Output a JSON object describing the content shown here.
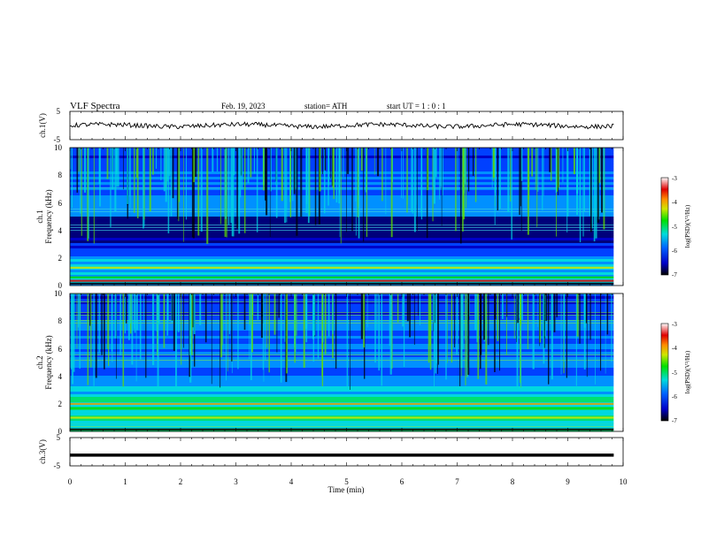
{
  "header": {
    "title": "VLF  Spectra",
    "date": "Feb. 19, 2023",
    "station": "station= ATH",
    "start_ut": "start  UT  =    1  : 0   : 1"
  },
  "chart_data": [
    {
      "type": "line",
      "name": "ch1-voltage",
      "ylabel": "ch.1(V)",
      "ylim": [
        -5,
        5
      ],
      "yticks": [
        "5",
        "-5"
      ],
      "xlim": [
        0,
        10
      ],
      "x_end": 9.83,
      "baseline": 0
    },
    {
      "type": "heatmap",
      "name": "ch1-spectrogram",
      "ylabel": "ch.1\nFrequency  (kHz)",
      "ylim": [
        0,
        10
      ],
      "yticks": [
        "0",
        "2",
        "4",
        "6",
        "8",
        "10"
      ],
      "xlim": [
        0,
        10
      ],
      "x_end": 9.83,
      "colorbar": {
        "label": "log(PSD)(V²/Hz)",
        "range": [
          -7,
          -3
        ],
        "ticks": [
          "-3",
          "-4",
          "-5",
          "-6",
          "-7"
        ]
      }
    },
    {
      "type": "heatmap",
      "name": "ch2-spectrogram",
      "ylabel": "ch.2\nFrequency  (kHz)",
      "ylim": [
        0,
        10
      ],
      "yticks": [
        "0",
        "2",
        "4",
        "6",
        "8",
        "10"
      ],
      "xlim": [
        0,
        10
      ],
      "x_end": 9.83,
      "colorbar": {
        "label": "log(PSD)(V²/Hz)",
        "range": [
          -7,
          -3
        ],
        "ticks": [
          "-3",
          "-4",
          "-5",
          "-6",
          "-7"
        ]
      }
    },
    {
      "type": "line",
      "name": "ch3-voltage",
      "ylabel": "ch.3(V)",
      "ylim": [
        -5,
        5
      ],
      "yticks": [
        "5",
        "-5"
      ],
      "xlim": [
        0,
        10
      ],
      "x_end": 9.83,
      "baseline": -1.2
    }
  ],
  "xaxis": {
    "label": "Time  (min)",
    "ticks": [
      "0",
      "1",
      "2",
      "3",
      "4",
      "5",
      "6",
      "7",
      "8",
      "9",
      "10"
    ]
  }
}
